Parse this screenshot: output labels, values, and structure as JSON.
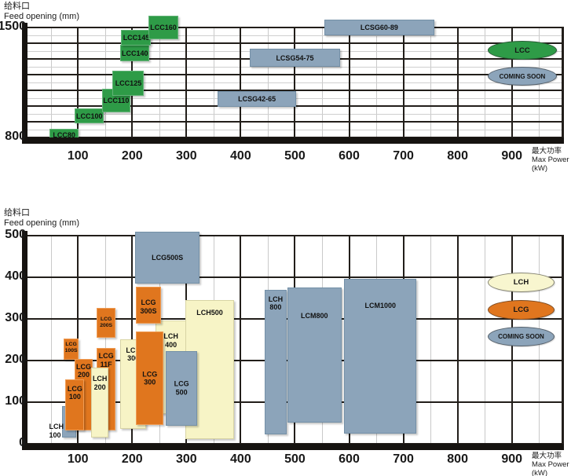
{
  "colors": {
    "lcc_green": "#2e9b47",
    "coming_soon_gray": "#8ca4ba",
    "lcg_orange": "#e0761e",
    "lch_cream": "#f7f4c6",
    "grid_major": "#221e1a",
    "grid_minor": "#c9c9c9",
    "axis_bar": "#161310",
    "text": "#111111"
  },
  "chart_data": [
    {
      "type": "range-box",
      "title": "",
      "ylabel_zh": "给料口",
      "ylabel_en": "Feed opening (mm)",
      "xlabel_zh": "最大功率",
      "xlabel_en": "Max Power (kW)",
      "x_ticks": [
        100,
        200,
        300,
        400,
        500,
        600,
        700,
        800,
        900
      ],
      "x_range": [
        7,
        996
      ],
      "y_range": [
        800,
        1500
      ],
      "y_ticks": [
        {
          "label": "1500",
          "value": 1500
        },
        {
          "label": "800",
          "value": 800
        }
      ],
      "grid": {
        "minor_horizontal": true,
        "minor_vertical": true
      },
      "legend_position": "right-inside",
      "boxes": [
        {
          "label": "LCC80",
          "color": "green",
          "power": [
            48,
            101
          ],
          "feed": [
            775,
            855
          ],
          "label_pos": "center"
        },
        {
          "label": "LCC100",
          "color": "green",
          "power": [
            94,
            148
          ],
          "feed": [
            890,
            985
          ],
          "label_pos": "center"
        },
        {
          "label": "LCC110",
          "color": "green",
          "power": [
            145,
            196
          ],
          "feed": [
            960,
            1110
          ],
          "label_pos": "center"
        },
        {
          "label": "LCC125",
          "color": "green",
          "power": [
            164,
            222
          ],
          "feed": [
            1065,
            1225
          ],
          "label_pos": "center"
        },
        {
          "label": "LCC140",
          "color": "green",
          "power": [
            178,
            232
          ],
          "feed": [
            1285,
            1390
          ],
          "label_pos": "center"
        },
        {
          "label": "LCC145",
          "color": "green",
          "power": [
            180,
            235
          ],
          "feed": [
            1385,
            1485
          ],
          "label_pos": "center"
        },
        {
          "label": "LCC160",
          "color": "green",
          "power": [
            230,
            285
          ],
          "feed": [
            1425,
            1575
          ],
          "label_pos": "center"
        },
        {
          "label": "LCSG42-65",
          "color": "gray",
          "power": [
            358,
            502
          ],
          "feed": [
            995,
            1095
          ],
          "label_pos": "center"
        },
        {
          "label": "LCSG54-75",
          "color": "gray",
          "power": [
            417,
            583
          ],
          "feed": [
            1250,
            1365
          ],
          "label_pos": "center"
        },
        {
          "label": "LCSG60-89",
          "color": "gray",
          "power": [
            554,
            757
          ],
          "feed": [
            1450,
            1550
          ],
          "label_pos": "center"
        }
      ],
      "legend": [
        {
          "label": "LCC",
          "color": "green"
        },
        {
          "label": "COMING SOON",
          "color": "gray"
        }
      ]
    },
    {
      "type": "range-box",
      "title": "",
      "ylabel_zh": "给料口",
      "ylabel_en": "Feed opening (mm)",
      "xlabel_zh": "最大功率",
      "xlabel_en": "Max Power (kW)",
      "x_ticks": [
        100,
        200,
        300,
        400,
        500,
        600,
        700,
        800,
        900
      ],
      "x_range": [
        7,
        996
      ],
      "y_range": [
        0,
        500
      ],
      "y_ticks": [
        {
          "label": "500",
          "value": 500
        },
        {
          "label": "400",
          "value": 400
        },
        {
          "label": "300",
          "value": 300
        },
        {
          "label": "200",
          "value": 200
        },
        {
          "label": "100",
          "value": 100
        },
        {
          "label": "0",
          "value": 0
        }
      ],
      "grid": {
        "minor_horizontal": false,
        "minor_vertical": true
      },
      "legend_position": "right-inside",
      "boxes": [
        {
          "label": "LCH\n100",
          "color": "gray",
          "power": [
            70,
            97
          ],
          "feed": [
            15,
            90
          ],
          "label_pos": "out"
        },
        {
          "label": "LCG\n100S",
          "color": "orange",
          "power": [
            74,
            101
          ],
          "feed": [
            202,
            253
          ],
          "label_pos": "top",
          "pad": 3,
          "small": true
        },
        {
          "label": "LCG\n200",
          "color": "orange",
          "power": [
            94,
            127
          ],
          "feed": [
            32,
            204
          ],
          "label_pos": "top",
          "pad": 4
        },
        {
          "label": "LCG\n100",
          "color": "orange",
          "power": [
            77,
            112
          ],
          "feed": [
            32,
            155
          ],
          "label_pos": "top",
          "pad": 6
        },
        {
          "label": "LCG\n11F",
          "color": "orange",
          "power": [
            135,
            169
          ],
          "feed": [
            32,
            230
          ],
          "label_pos": "top",
          "pad": 4
        },
        {
          "label": "LCH\n200",
          "color": "cream",
          "power": [
            125,
            156
          ],
          "feed": [
            15,
            183
          ],
          "label_pos": "top",
          "pad": 8
        },
        {
          "label": "LCH\n300",
          "color": "cream",
          "power": [
            178,
            226
          ],
          "feed": [
            36,
            251
          ],
          "label_pos": "top",
          "pad": 8
        },
        {
          "label": "LCG\n200S",
          "color": "orange",
          "power": [
            135,
            169
          ],
          "feed": [
            255,
            326
          ],
          "label_pos": "center",
          "small": true
        },
        {
          "label": "LCH\n400",
          "color": "cream",
          "power": [
            243,
            300
          ],
          "feed": [
            72,
            296
          ],
          "label_pos": "top",
          "pad": 14
        },
        {
          "label": "LCG\n300S",
          "color": "orange",
          "power": [
            207,
            253
          ],
          "feed": [
            289,
            377
          ],
          "label_pos": "top",
          "pad": 14
        },
        {
          "label": "LCG\n300",
          "color": "orange",
          "power": [
            207,
            258
          ],
          "feed": [
            45,
            270
          ],
          "label_pos": "center"
        },
        {
          "label": "LCH500",
          "color": "cream",
          "power": [
            298,
            388
          ],
          "feed": [
            11,
            345
          ],
          "label_pos": "top",
          "pad": 10
        },
        {
          "label": "LCG\n500",
          "color": "gray",
          "power": [
            262,
            320
          ],
          "feed": [
            43,
            223
          ],
          "label_pos": "center"
        },
        {
          "label": "LCG500S",
          "color": "gray",
          "power": [
            206,
            324
          ],
          "feed": [
            385,
            509
          ],
          "label_pos": "center"
        },
        {
          "label": "LCH\n800",
          "color": "gray",
          "power": [
            444,
            485
          ],
          "feed": [
            23,
            370
          ],
          "label_pos": "top",
          "pad": 6
        },
        {
          "label": "LCM800",
          "color": "gray",
          "power": [
            486,
            586
          ],
          "feed": [
            51,
            375
          ],
          "label_pos": "top",
          "pad": 30
        },
        {
          "label": "LCM1000",
          "color": "gray",
          "power": [
            591,
            724
          ],
          "feed": [
            25,
            396
          ],
          "label_pos": "top",
          "pad": 28
        }
      ],
      "legend": [
        {
          "label": "LCH",
          "color": "cream"
        },
        {
          "label": "LCG",
          "color": "orange"
        },
        {
          "label": "COMING SOON",
          "color": "gray"
        }
      ]
    }
  ]
}
